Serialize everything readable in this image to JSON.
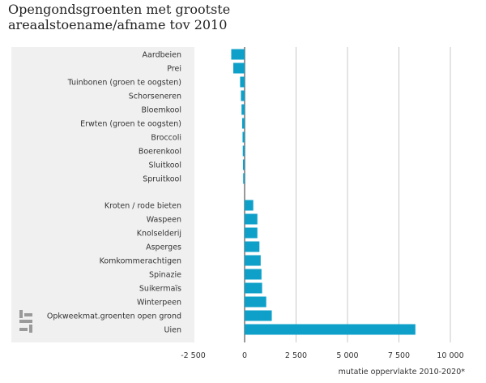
{
  "title_lines": [
    "Opengondsgroenten met grootste",
    "areaalstoename/afname tov 2010"
  ],
  "chart_data": {
    "type": "bar",
    "orientation": "horizontal",
    "title": "Opengondsgroenten met grootste areaalstoename/afname tov 2010",
    "xlabel": "mutatie oppervlakte 2010-2020*",
    "ylabel": "",
    "xlim": [
      -2500,
      10000
    ],
    "x_ticks": [
      -2500,
      0,
      2500,
      5000,
      7500,
      10000
    ],
    "x_tick_labels": [
      "-2 500",
      "0",
      "2 500",
      "5 000",
      "7 500",
      "10 000"
    ],
    "grid": true,
    "categories": [
      "Aardbeien",
      "Prei",
      "Tuinbonen (groen te oogsten)",
      "Schorseneren",
      "Bloemkool",
      "Erwten (groen te oogsten)",
      "Broccoli",
      "Boerenkool",
      "Sluitkool",
      "Spruitkool",
      "Kroten / rode bieten",
      "Waspeen",
      "Knolselderij",
      "Asperges",
      "Komkommerachtigen",
      "Spinazie",
      "Suikermaïs",
      "Winterpeen",
      "Opkweekmat.groenten open grond",
      "Uien"
    ],
    "values": [
      -650,
      -550,
      -220,
      -180,
      -150,
      -120,
      -100,
      -90,
      -80,
      -70,
      420,
      620,
      620,
      720,
      780,
      820,
      850,
      1050,
      1320,
      8300
    ],
    "bar_color": "#0ea0c9",
    "panel_color": "#f0f0f0",
    "grid_color": "#c8c8c8",
    "zero_line_color": "#555555"
  },
  "logo": {
    "name": "cbs"
  }
}
